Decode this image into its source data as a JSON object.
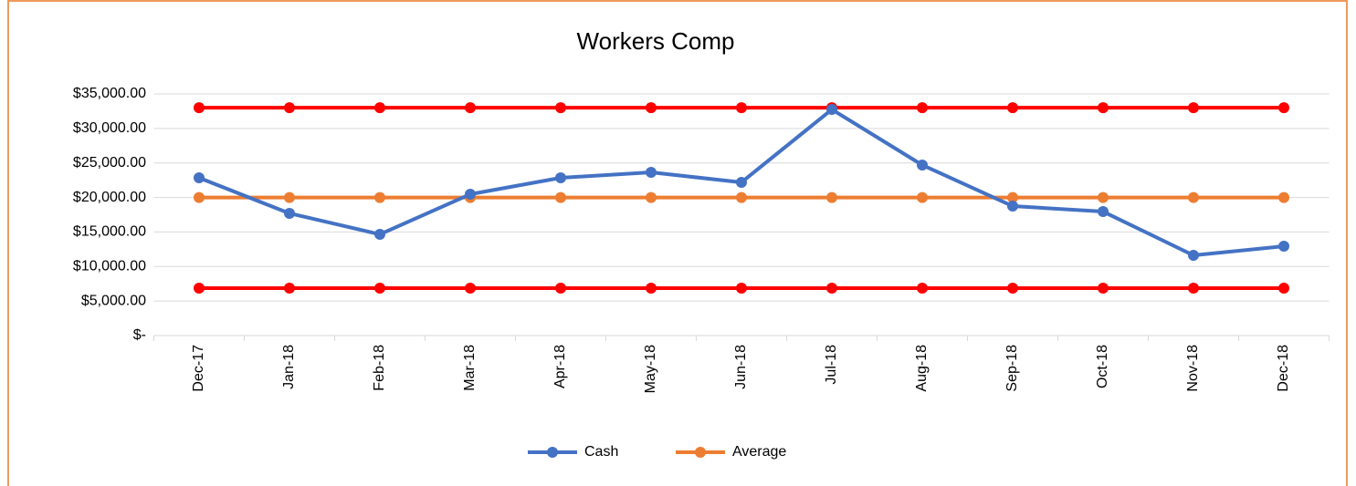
{
  "chart_data": {
    "type": "line",
    "title": "Workers Comp",
    "categories": [
      "Dec-17",
      "Jan-18",
      "Feb-18",
      "Mar-18",
      "Apr-18",
      "May-18",
      "Jun-18",
      "Jul-18",
      "Aug-18",
      "Sep-18",
      "Oct-18",
      "Nov-18",
      "Dec-18"
    ],
    "series": [
      {
        "name": "Cash",
        "color": "#4472c4",
        "values": [
          22850,
          17700,
          14660,
          20470,
          22850,
          23640,
          22190,
          32750,
          24700,
          18750,
          17960,
          11620,
          12940
        ]
      },
      {
        "name": "Average",
        "color": "#ed7d31",
        "values": [
          20000,
          20000,
          20000,
          20000,
          20000,
          20000,
          20000,
          20000,
          20000,
          20000,
          20000,
          20000,
          20000
        ]
      },
      {
        "color": "#ff0000",
        "values": [
          33000,
          33000,
          33000,
          33000,
          33000,
          33000,
          33000,
          33000,
          33000,
          33000,
          33000,
          33000,
          33000
        ]
      },
      {
        "color": "#ff0000",
        "values": [
          6870,
          6870,
          6870,
          6870,
          6870,
          6870,
          6870,
          6870,
          6870,
          6870,
          6870,
          6870,
          6870
        ]
      }
    ],
    "ylim": [
      0,
      35000
    ],
    "yticks": [
      {
        "value": 0,
        "label": "$-"
      },
      {
        "value": 5000,
        "label": "$5,000.00"
      },
      {
        "value": 10000,
        "label": "$10,000.00"
      },
      {
        "value": 15000,
        "label": "$15,000.00"
      },
      {
        "value": 20000,
        "label": "$20,000.00"
      },
      {
        "value": 25000,
        "label": "$25,000.00"
      },
      {
        "value": 30000,
        "label": "$30,000.00"
      },
      {
        "value": 35000,
        "label": "$35,000.00"
      }
    ],
    "grid": true,
    "legend": "bottom"
  }
}
